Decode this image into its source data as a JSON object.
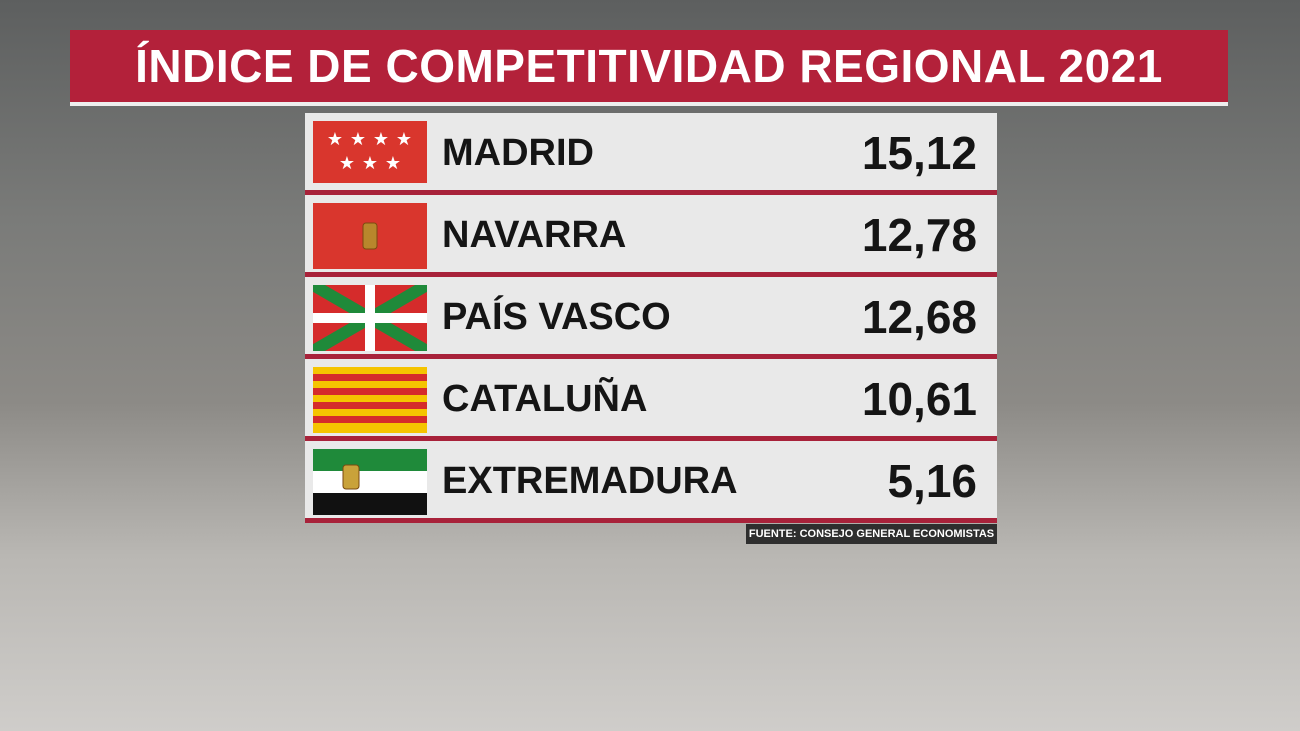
{
  "header": {
    "title": "ÍNDICE DE COMPETITIVIDAD REGIONAL 2021"
  },
  "table": {
    "rows": [
      [
        "MADRID",
        "15,12"
      ],
      [
        "NAVARRA",
        "12,78"
      ],
      [
        "PAÍS VASCO",
        "12,68"
      ],
      [
        "CATALUÑA",
        "10,61"
      ],
      [
        "EXTREMADURA",
        "5,16"
      ]
    ]
  },
  "footer": {
    "source": "FUENTE: CONSEJO GENERAL ECONOMISTAS"
  }
}
